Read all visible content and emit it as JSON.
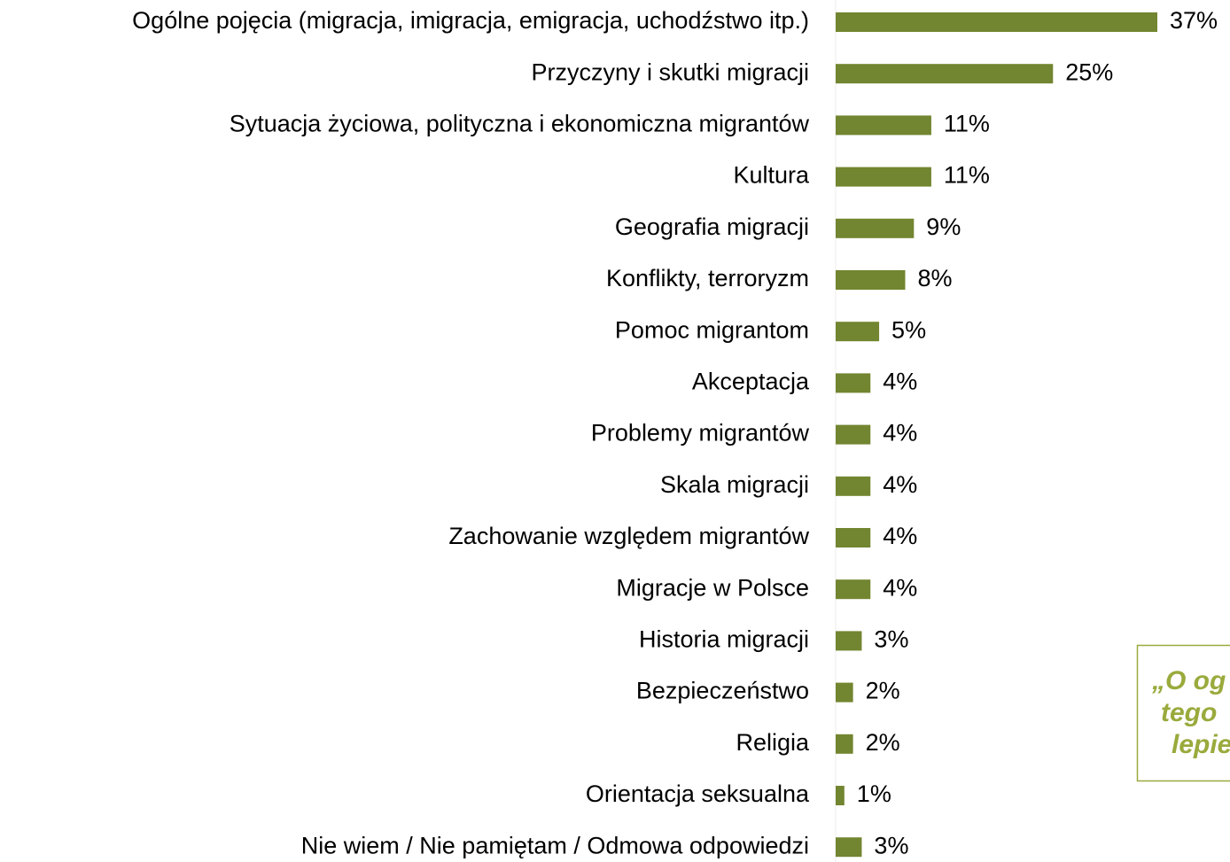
{
  "chart_data": {
    "type": "bar",
    "orientation": "horizontal",
    "categories": [
      "Ogólne pojęcia (migracja, imigracja, emigracja, uchodźstwo itp.)",
      "Przyczyny i skutki migracji",
      "Sytuacja życiowa, polityczna i ekonomiczna migrantów",
      "Kultura",
      "Geografia migracji",
      "Konflikty, terroryzm",
      "Pomoc migrantom",
      "Akceptacja",
      "Problemy migrantów",
      "Skala migracji",
      "Zachowanie względem migrantów",
      "Migracje w Polsce",
      "Historia migracji",
      "Bezpieczeństwo",
      "Religia",
      "Orientacja seksualna",
      "Nie wiem / Nie pamiętam / Odmowa odpowiedzi"
    ],
    "values": [
      37,
      25,
      11,
      11,
      9,
      8,
      5,
      4,
      4,
      4,
      4,
      4,
      3,
      2,
      2,
      1,
      3
    ],
    "value_labels": [
      "37%",
      "25%",
      "11%",
      "11%",
      "9%",
      "8%",
      "5%",
      "4%",
      "4%",
      "4%",
      "4%",
      "4%",
      "3%",
      "2%",
      "2%",
      "1%",
      "3%"
    ],
    "color": "#728530",
    "annotation": [
      "„O og",
      "tego",
      "lepie"
    ]
  }
}
